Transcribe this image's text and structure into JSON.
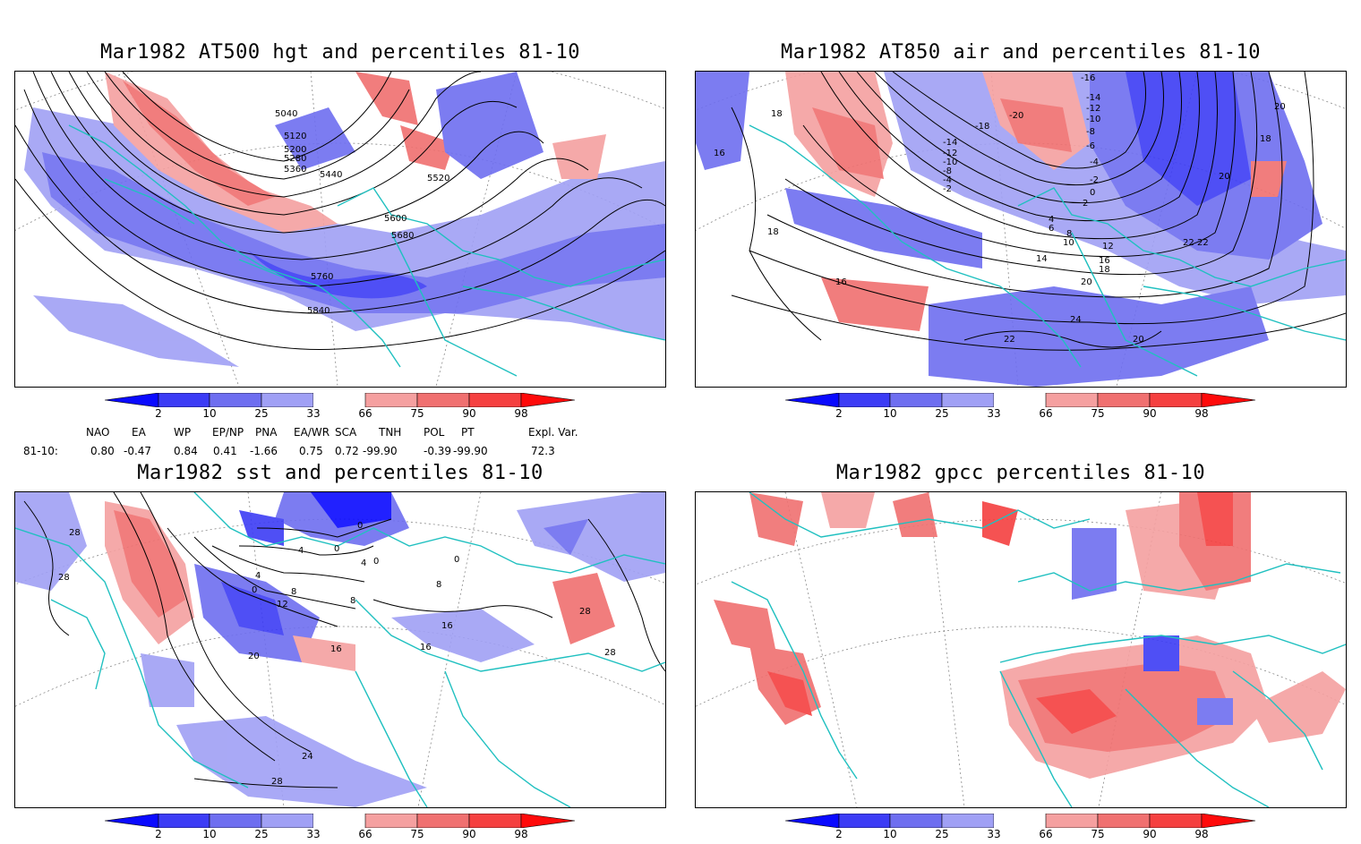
{
  "panels": [
    {
      "title": "Mar1982 AT500 hgt and percentiles 81-10",
      "contour_labels": [
        "5040",
        "5120",
        "5200",
        "5280",
        "5360",
        "5440",
        "5520",
        "5600",
        "5680",
        "5760",
        "5840"
      ]
    },
    {
      "title": "Mar1982 AT850 air and percentiles 81-10",
      "contour_labels": [
        "-16",
        "-14",
        "-12",
        "-10",
        "-8",
        "-6",
        "-4",
        "-2",
        "0",
        "2",
        "4",
        "6",
        "8",
        "10",
        "12",
        "14",
        "16",
        "18",
        "20",
        "22",
        "24",
        "20",
        "18",
        "16",
        "18",
        "16",
        "18",
        "20",
        "22",
        "20",
        "22",
        "-18",
        "-20",
        "-14",
        "-12",
        "-10",
        "-8",
        "-4",
        "-2"
      ]
    },
    {
      "title": "Mar1982 sst and percentiles 81-10",
      "contour_labels": [
        "28",
        "28",
        "0",
        "4",
        "8",
        "12",
        "16",
        "16",
        "16",
        "20",
        "24",
        "28",
        "28",
        "28",
        "0",
        "4",
        "0",
        "0",
        "0",
        "4",
        "8",
        "8"
      ]
    },
    {
      "title": "Mar1982 gpcc percentiles 81-10",
      "contour_labels": []
    }
  ],
  "colorbar": {
    "labels": [
      "2",
      "10",
      "25",
      "33",
      "66",
      "75",
      "90",
      "98"
    ],
    "colors": [
      "#0a0aff",
      "#3c3cf5",
      "#6e6ef0",
      "#a0a0f5",
      "#ffffff",
      "#f5a0a0",
      "#f07070",
      "#f54040",
      "#ff0a0a"
    ]
  },
  "teleconnections": {
    "headers": [
      "NAO",
      "EA",
      "WP",
      "EP/NP",
      "PNA",
      "EA/WR",
      "SCA",
      "TNH",
      "POL",
      "PT",
      "Expl. Var."
    ],
    "row_label": "81-10:",
    "values": [
      "0.80",
      "-0.47",
      "0.84",
      "0.41",
      "-1.66",
      "0.75",
      "0.72",
      "-99.90",
      "-0.39",
      "-99.90",
      "72.3"
    ]
  }
}
